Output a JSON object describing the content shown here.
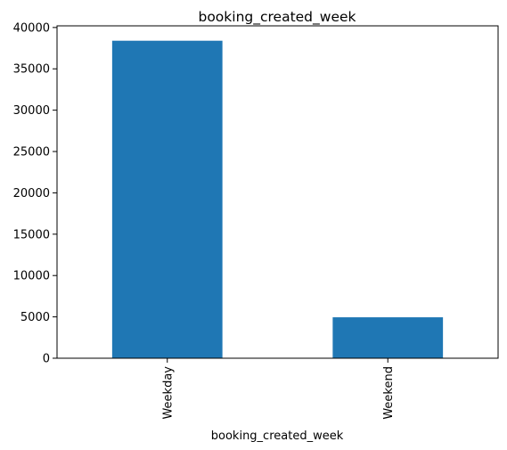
{
  "chart_data": {
    "type": "bar",
    "title": "booking_created_week",
    "xlabel": "booking_created_week",
    "ylabel": "",
    "categories": [
      "Weekday",
      "Weekend"
    ],
    "values": [
      38400,
      4950
    ],
    "ylim": [
      0,
      40200
    ],
    "yticks": [
      "0",
      "5000",
      "10000",
      "15000",
      "20000",
      "25000",
      "30000",
      "35000",
      "40000"
    ],
    "bar_color": "#1f77b4",
    "grid": false,
    "legend": "none"
  }
}
